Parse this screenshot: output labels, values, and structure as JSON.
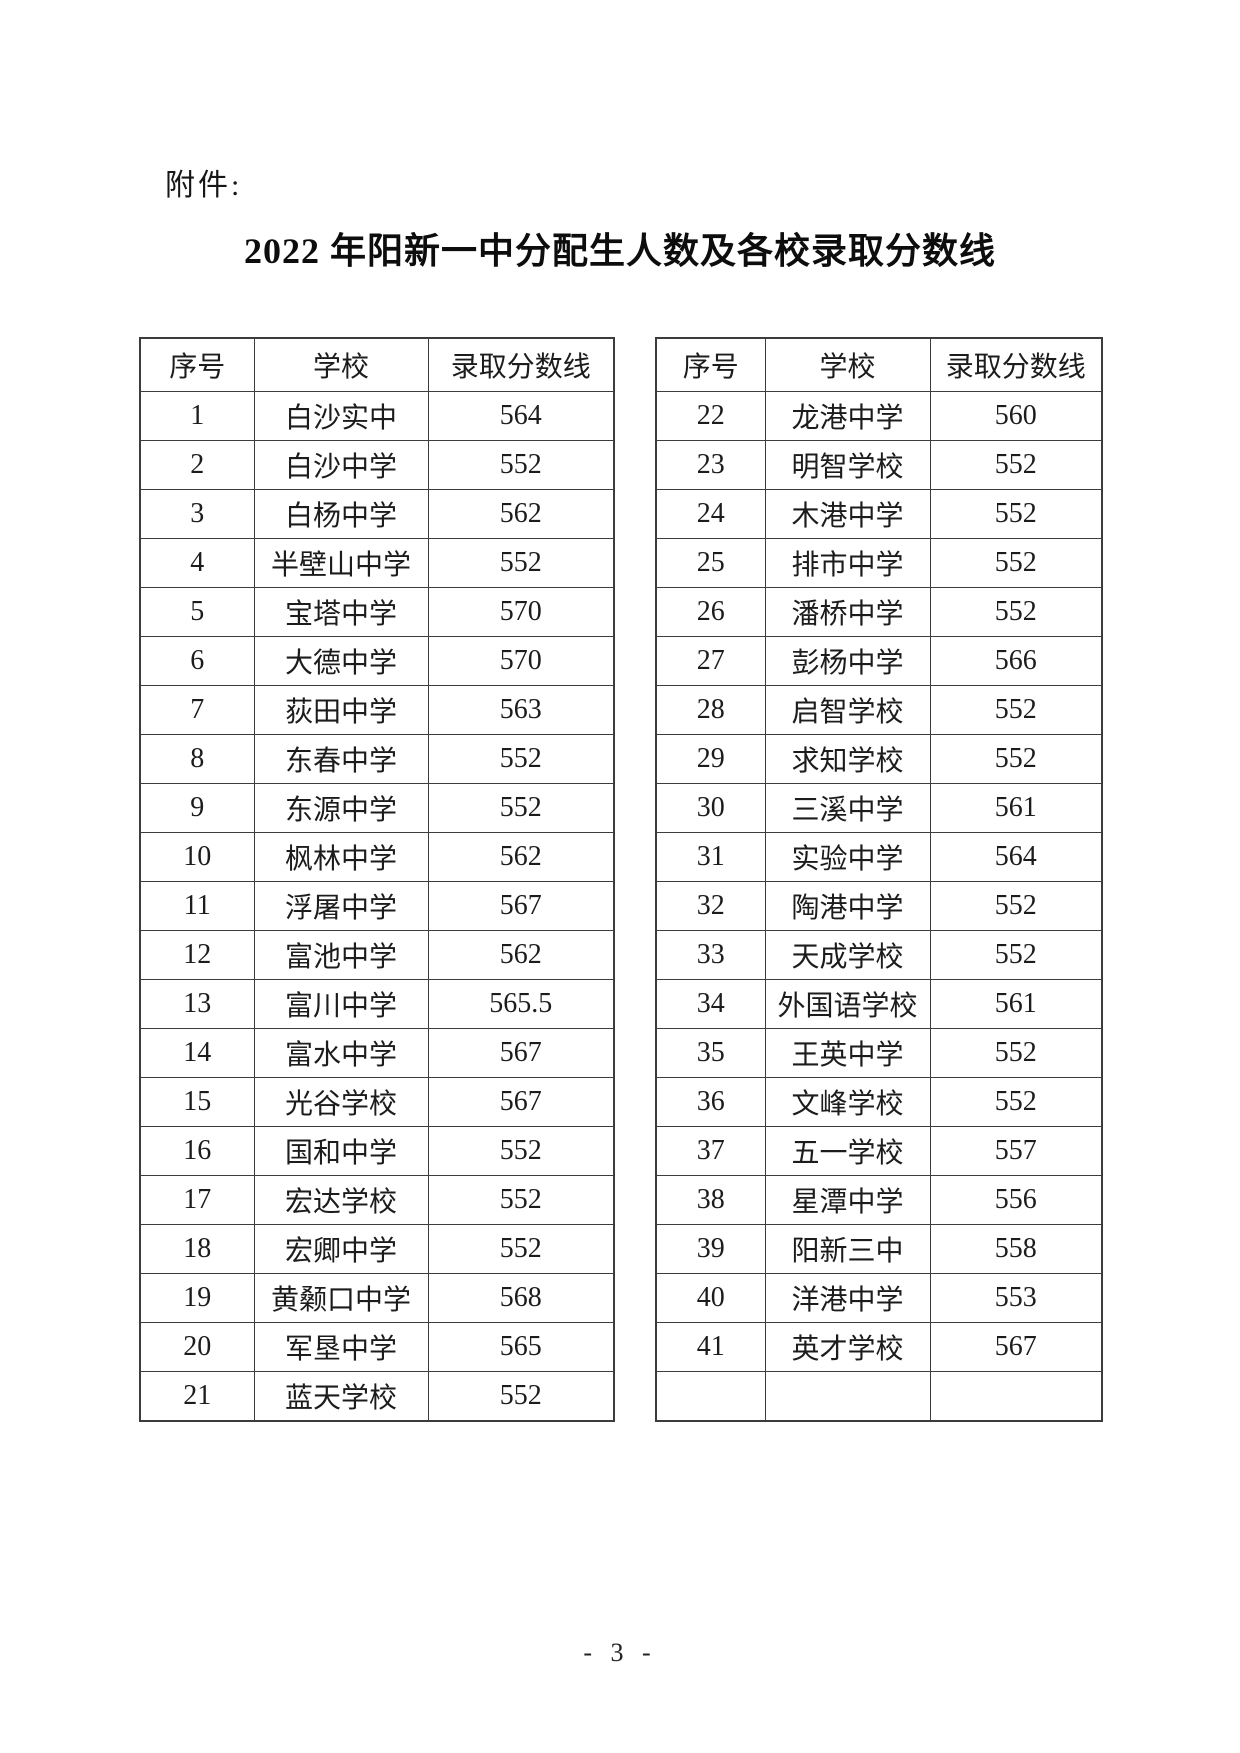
{
  "page": {
    "attachment_label": "附件:",
    "title": "2022 年阳新一中分配生人数及各校录取分数线",
    "page_number": "- 3 -"
  },
  "tables": {
    "headers": [
      "序号",
      "学校",
      "录取分数线"
    ],
    "left_rows": [
      [
        "1",
        "白沙实中",
        "564"
      ],
      [
        "2",
        "白沙中学",
        "552"
      ],
      [
        "3",
        "白杨中学",
        "562"
      ],
      [
        "4",
        "半壁山中学",
        "552"
      ],
      [
        "5",
        "宝塔中学",
        "570"
      ],
      [
        "6",
        "大德中学",
        "570"
      ],
      [
        "7",
        "荻田中学",
        "563"
      ],
      [
        "8",
        "东春中学",
        "552"
      ],
      [
        "9",
        "东源中学",
        "552"
      ],
      [
        "10",
        "枫林中学",
        "562"
      ],
      [
        "11",
        "浮屠中学",
        "567"
      ],
      [
        "12",
        "富池中学",
        "562"
      ],
      [
        "13",
        "富川中学",
        "565.5"
      ],
      [
        "14",
        "富水中学",
        "567"
      ],
      [
        "15",
        "光谷学校",
        "567"
      ],
      [
        "16",
        "国和中学",
        "552"
      ],
      [
        "17",
        "宏达学校",
        "552"
      ],
      [
        "18",
        "宏卿中学",
        "552"
      ],
      [
        "19",
        "黄颡口中学",
        "568"
      ],
      [
        "20",
        "军垦中学",
        "565"
      ],
      [
        "21",
        "蓝天学校",
        "552"
      ]
    ],
    "right_rows": [
      [
        "22",
        "龙港中学",
        "560"
      ],
      [
        "23",
        "明智学校",
        "552"
      ],
      [
        "24",
        "木港中学",
        "552"
      ],
      [
        "25",
        "排市中学",
        "552"
      ],
      [
        "26",
        "潘桥中学",
        "552"
      ],
      [
        "27",
        "彭杨中学",
        "566"
      ],
      [
        "28",
        "启智学校",
        "552"
      ],
      [
        "29",
        "求知学校",
        "552"
      ],
      [
        "30",
        "三溪中学",
        "561"
      ],
      [
        "31",
        "实验中学",
        "564"
      ],
      [
        "32",
        "陶港中学",
        "552"
      ],
      [
        "33",
        "天成学校",
        "552"
      ],
      [
        "34",
        "外国语学校",
        "561"
      ],
      [
        "35",
        "王英中学",
        "552"
      ],
      [
        "36",
        "文峰学校",
        "552"
      ],
      [
        "37",
        "五一学校",
        "557"
      ],
      [
        "38",
        "星潭中学",
        "556"
      ],
      [
        "39",
        "阳新三中",
        "558"
      ],
      [
        "40",
        "洋港中学",
        "553"
      ],
      [
        "41",
        "英才学校",
        "567"
      ],
      [
        "",
        "",
        ""
      ]
    ]
  }
}
